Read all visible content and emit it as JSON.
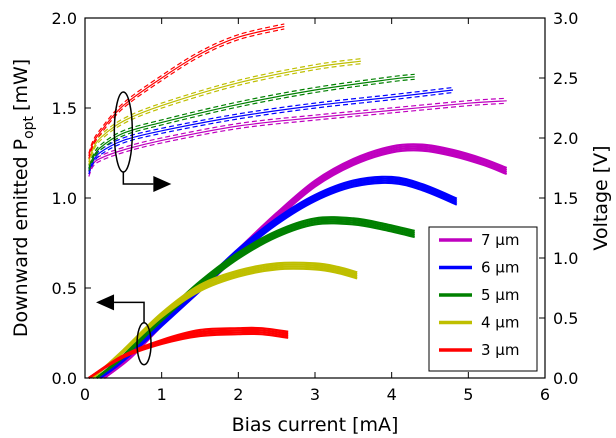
{
  "chart_data": {
    "type": "line",
    "xlabel": "Bias current [mA]",
    "ylabel_left": "Downward emitted P",
    "ylabel_left_sub": "opt",
    "ylabel_left_unit": "[mW]",
    "ylabel_right": "Voltage [V]",
    "xlim": [
      0,
      6
    ],
    "ylim_left": [
      0,
      2.0
    ],
    "ylim_right": [
      0,
      3.0
    ],
    "x_ticks": [
      "0",
      "1",
      "2",
      "3",
      "4",
      "5",
      "6"
    ],
    "y_left_ticks": [
      "0.0",
      "0.5",
      "1.0",
      "1.5",
      "2.0"
    ],
    "y_right_ticks": [
      "0.0",
      "0.5",
      "1.0",
      "1.5",
      "2.0",
      "2.5",
      "3.0"
    ],
    "grid": false,
    "legend_position": "lower-right",
    "colors": {
      "7um": "#bf00bf",
      "6um": "#0000ff",
      "5um": "#008000",
      "4um": "#bfbf00",
      "3um": "#ff0000"
    },
    "series": [
      {
        "name": "7 μm",
        "color": "#bf00bf",
        "power": {
          "x": [
            0.25,
            0.6,
            1.0,
            1.5,
            2.0,
            2.5,
            3.0,
            3.5,
            4.0,
            4.4,
            4.8,
            5.2,
            5.5
          ],
          "y": [
            0.0,
            0.12,
            0.3,
            0.5,
            0.7,
            0.9,
            1.08,
            1.2,
            1.27,
            1.28,
            1.25,
            1.2,
            1.15
          ]
        },
        "voltage": {
          "x": [
            0.05,
            0.1,
            0.2,
            0.5,
            1.0,
            2.0,
            3.0,
            4.0,
            5.0,
            5.5
          ],
          "y": [
            1.7,
            1.78,
            1.83,
            1.9,
            1.98,
            2.1,
            2.17,
            2.23,
            2.29,
            2.31
          ]
        }
      },
      {
        "name": "6 μm",
        "color": "#0000ff",
        "power": {
          "x": [
            0.2,
            0.5,
            1.0,
            1.5,
            2.0,
            2.5,
            3.0,
            3.5,
            4.0,
            4.4,
            4.85
          ],
          "y": [
            0.0,
            0.1,
            0.3,
            0.5,
            0.7,
            0.87,
            1.0,
            1.08,
            1.1,
            1.06,
            0.98
          ]
        },
        "voltage": {
          "x": [
            0.05,
            0.1,
            0.2,
            0.5,
            1.0,
            2.0,
            3.0,
            4.0,
            4.8
          ],
          "y": [
            1.72,
            1.8,
            1.88,
            1.98,
            2.06,
            2.18,
            2.27,
            2.34,
            2.4
          ]
        }
      },
      {
        "name": "5 μm",
        "color": "#008000",
        "power": {
          "x": [
            0.15,
            0.5,
            1.0,
            1.5,
            2.0,
            2.5,
            3.0,
            3.5,
            3.9,
            4.3
          ],
          "y": [
            0.0,
            0.12,
            0.33,
            0.52,
            0.68,
            0.8,
            0.87,
            0.87,
            0.84,
            0.8
          ]
        },
        "voltage": {
          "x": [
            0.05,
            0.1,
            0.2,
            0.5,
            1.0,
            2.0,
            3.0,
            4.0,
            4.3
          ],
          "y": [
            1.75,
            1.83,
            1.92,
            2.04,
            2.13,
            2.28,
            2.4,
            2.49,
            2.51
          ]
        }
      },
      {
        "name": "4 μm",
        "color": "#bfbf00",
        "power": {
          "x": [
            0.1,
            0.5,
            1.0,
            1.5,
            2.0,
            2.5,
            3.0,
            3.3,
            3.55
          ],
          "y": [
            0.0,
            0.15,
            0.35,
            0.5,
            0.58,
            0.62,
            0.62,
            0.6,
            0.57
          ]
        },
        "voltage": {
          "x": [
            0.05,
            0.1,
            0.2,
            0.5,
            1.0,
            2.0,
            3.0,
            3.6
          ],
          "y": [
            1.8,
            1.9,
            2.0,
            2.14,
            2.27,
            2.46,
            2.59,
            2.64
          ]
        }
      },
      {
        "name": "3 μm",
        "color": "#ff0000",
        "power": {
          "x": [
            0.05,
            0.5,
            1.0,
            1.5,
            2.0,
            2.3,
            2.65
          ],
          "y": [
            0.0,
            0.12,
            0.2,
            0.25,
            0.26,
            0.26,
            0.24
          ]
        },
        "voltage": {
          "x": [
            0.05,
            0.1,
            0.2,
            0.5,
            1.0,
            1.5,
            2.0,
            2.6
          ],
          "y": [
            1.85,
            1.95,
            2.05,
            2.27,
            2.5,
            2.7,
            2.84,
            2.93
          ]
        }
      }
    ],
    "annotations": [
      {
        "target": "voltage curves",
        "axis": "right",
        "arrow_direction": "right"
      },
      {
        "target": "power curves",
        "axis": "left",
        "arrow_direction": "left"
      }
    ]
  }
}
